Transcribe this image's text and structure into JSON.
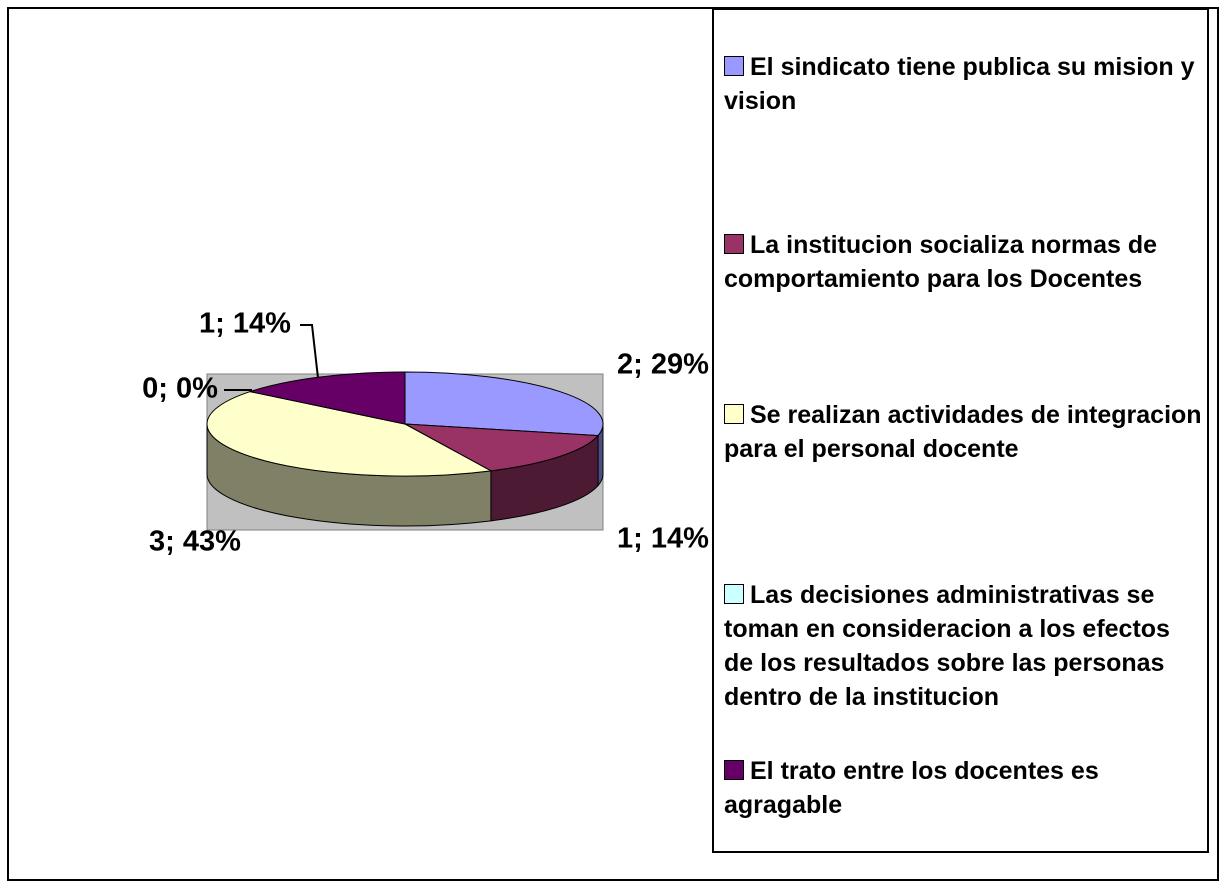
{
  "chart_data": {
    "type": "pie",
    "categories": [
      "El sindicato tiene publica su mision y vision",
      "La institucion socializa normas de comportamiento para  los Docentes",
      "Se realizan actividades de integracion para el personal docente",
      "Las decisiones administrativas se toman en consideracion a los efectos de los resultados sobre las personas dentro de la institucion",
      "El trato entre los docentes es agragable"
    ],
    "values": [
      2,
      1,
      3,
      0,
      1
    ],
    "value_labels": [
      "2; 29%",
      "1; 14%",
      "3; 43%",
      "0; 0%",
      "1; 14%"
    ],
    "colors": [
      "#9999ff",
      "#993366",
      "#ffffcc",
      "#ccffff",
      "#660066"
    ]
  }
}
